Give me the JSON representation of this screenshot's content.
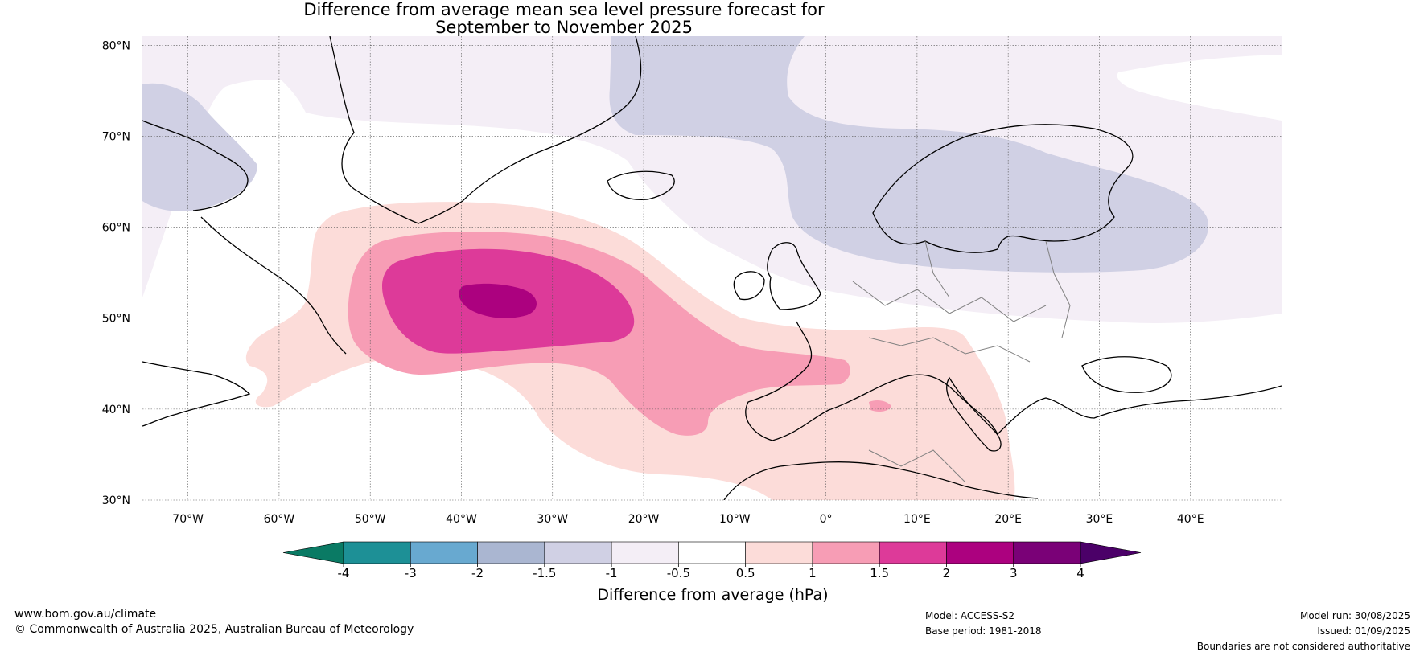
{
  "title_line_1": "Difference from average mean sea level pressure forecast for",
  "title_line_2": "September to November 2025",
  "axes": {
    "lat_labels": [
      "80°N",
      "70°N",
      "60°N",
      "50°N",
      "40°N",
      "30°N"
    ],
    "lon_labels": [
      "70°W",
      "60°W",
      "50°W",
      "40°W",
      "30°W",
      "20°W",
      "10°W",
      "0°",
      "10°E",
      "20°E",
      "30°E",
      "40°E"
    ],
    "lon_range": [
      -75,
      50
    ],
    "lat_range": [
      30,
      81
    ]
  },
  "colorbar": {
    "title": "Difference from average (hPa)",
    "tick_labels": [
      "-4",
      "-3",
      "-2",
      "-1.5",
      "-1",
      "-0.5",
      "0.5",
      "1",
      "1.5",
      "2",
      "3",
      "4"
    ],
    "colors": [
      "#1d9096",
      "#68a9d0",
      "#aab6d1",
      "#d0d0e4",
      "#f4eef6",
      "#ffffff",
      "#fcdcd9",
      "#f79db5",
      "#dd3a99",
      "#ac017f",
      "#7a0177"
    ],
    "under_color": "#0a7a64",
    "over_color": "#4b0068"
  },
  "footer": {
    "website": "www.bom.gov.au/climate",
    "copyright": "© Commonwealth of Australia 2025, Australian Bureau of Meteorology",
    "model": "Model: ACCESS-S2",
    "base_period": "Base period: 1981-2018",
    "model_run": "Model run: 30/08/2025",
    "issued": "Issued: 01/09/2025",
    "disclaimer": "Boundaries are not considered authoritative"
  }
}
